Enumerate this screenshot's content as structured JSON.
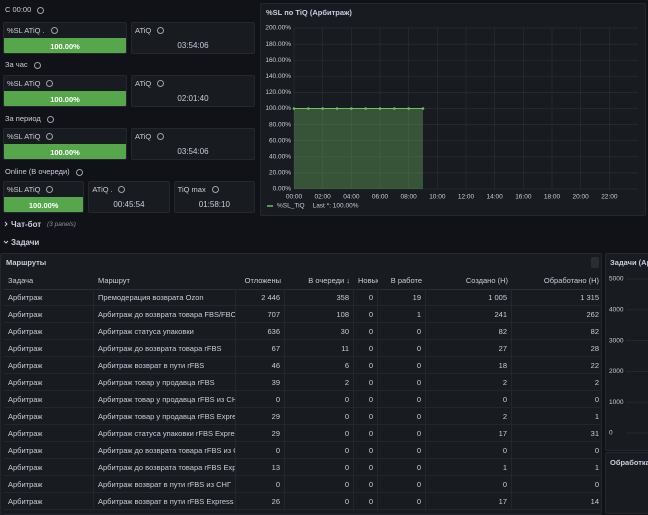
{
  "sections": [
    {
      "title": "С 00:00",
      "panels": [
        {
          "title": "%SL ATiQ .",
          "value": "100.00%",
          "color": "#56a64b"
        },
        {
          "title": "ATiQ",
          "value": "03:54:06"
        }
      ]
    },
    {
      "title": "За час",
      "panels": [
        {
          "title": "%SL ATiQ",
          "value": "100.00%",
          "color": "#56a64b"
        },
        {
          "title": "ATiQ",
          "value": "02:01:40"
        }
      ]
    },
    {
      "title": "За период",
      "panels": [
        {
          "title": "%SL ATiQ",
          "value": "100.00%",
          "color": "#56a64b"
        },
        {
          "title": "ATiQ",
          "value": "03:54:06"
        }
      ]
    },
    {
      "title": "Online (В очереди)",
      "panels": [
        {
          "title": "%SL ATiQ",
          "value": "100.00%",
          "color": "#56a64b"
        },
        {
          "title": "ATiQ .",
          "value": "00:45:54"
        },
        {
          "title": "TiQ max",
          "value": "01:58:10"
        }
      ]
    }
  ],
  "chart": {
    "type": "line",
    "title": "%SL по TiQ (Арбитраж)",
    "x": [
      0,
      1,
      2,
      3,
      4,
      5,
      6,
      7,
      8,
      9
    ],
    "series": [
      {
        "name": "%SL_TiQ",
        "color": "#73bf69",
        "values": [
          100,
          100,
          100,
          100,
          100,
          100,
          100,
          100,
          100,
          100
        ]
      }
    ],
    "legend_value": "Last *: 100.00%",
    "xlim": [
      0,
      24
    ],
    "xticks": [
      {
        "value": 0,
        "label": "00:00"
      },
      {
        "value": 2,
        "label": "02:00"
      },
      {
        "value": 4,
        "label": "04:00"
      },
      {
        "value": 6,
        "label": "06:00"
      },
      {
        "value": 8,
        "label": "08:00"
      },
      {
        "value": 10,
        "label": "10:00"
      },
      {
        "value": 12,
        "label": "12:00"
      },
      {
        "value": 14,
        "label": "14:00"
      },
      {
        "value": 16,
        "label": "16:00"
      },
      {
        "value": 18,
        "label": "18:00"
      },
      {
        "value": 20,
        "label": "20:00"
      },
      {
        "value": 22,
        "label": "22:00"
      }
    ],
    "ylim": [
      0,
      200
    ],
    "yticks": [
      {
        "value": 0,
        "label": "0.00%"
      },
      {
        "value": 20,
        "label": "20.00%"
      },
      {
        "value": 40,
        "label": "40.00%"
      },
      {
        "value": 60,
        "label": "60.00%"
      },
      {
        "value": 80,
        "label": "80.00%"
      },
      {
        "value": 100,
        "label": "100.00%"
      },
      {
        "value": 120,
        "label": "120.00%"
      },
      {
        "value": 140,
        "label": "140.00%"
      },
      {
        "value": 160,
        "label": "160.00%"
      },
      {
        "value": 180,
        "label": "180.00%"
      },
      {
        "value": 200,
        "label": "200.00%"
      }
    ],
    "grid": true
  },
  "rows": [
    {
      "title": "Чат-бот",
      "note": "(3 panels)"
    },
    {
      "title": "Задачи"
    }
  ],
  "table": {
    "title": "Маршруты",
    "columns": [
      "Задача",
      "Маршрут",
      "Отложены",
      "В очереди ↓",
      "Новые",
      "В работе",
      "Создано (Н)",
      "Обработано (Н)"
    ],
    "rows": [
      [
        "Арбитраж",
        "Премодерация возврата Ozon",
        "2 446",
        "358",
        "0",
        "19",
        "1 005",
        "1 315"
      ],
      [
        "Арбитраж",
        "Арбитраж до возврата товара FBS/FBO",
        "707",
        "108",
        "0",
        "1",
        "241",
        "262"
      ],
      [
        "Арбитраж",
        "Арбитраж статуса упаковки",
        "636",
        "30",
        "0",
        "0",
        "82",
        "82"
      ],
      [
        "Арбитраж",
        "Арбитраж до возврата товара rFBS",
        "67",
        "11",
        "0",
        "0",
        "27",
        "28"
      ],
      [
        "Арбитраж",
        "Арбитраж возврат в пути rFBS",
        "46",
        "6",
        "0",
        "0",
        "18",
        "22"
      ],
      [
        "Арбитраж",
        "Арбитраж товар у продавца rFBS",
        "39",
        "2",
        "0",
        "0",
        "2",
        "2"
      ],
      [
        "Арбитраж",
        "Арбитраж товар у продавца rFBS из СНГ",
        "0",
        "0",
        "0",
        "0",
        "0",
        "0"
      ],
      [
        "Арбитраж",
        "Арбитраж товар у продавца rFBS Express",
        "29",
        "0",
        "0",
        "0",
        "2",
        "1"
      ],
      [
        "Арбитраж",
        "Арбитраж статуса упаковки rFBS Express",
        "29",
        "0",
        "0",
        "0",
        "17",
        "31"
      ],
      [
        "Арбитраж",
        "Арбитраж до возврата товара rFBS из СНГ",
        "0",
        "0",
        "0",
        "0",
        "0",
        "0"
      ],
      [
        "Арбитраж",
        "Арбитраж до возврата товара rFBS Express",
        "13",
        "0",
        "0",
        "0",
        "1",
        "1"
      ],
      [
        "Арбитраж",
        "Арбитраж возврат в пути rFBS из СНГ",
        "0",
        "0",
        "0",
        "0",
        "0",
        "0"
      ],
      [
        "Арбитраж",
        "Арбитраж возврат в пути rFBS Express",
        "26",
        "0",
        "0",
        "0",
        "17",
        "14"
      ]
    ]
  },
  "side_chart": {
    "title": "Задачи (Арбитраж)",
    "ylim": [
      0,
      5000
    ],
    "yticks": [
      0,
      1000,
      2000,
      3000,
      4000,
      5000
    ]
  },
  "side_panel": {
    "title": "Обработка"
  }
}
